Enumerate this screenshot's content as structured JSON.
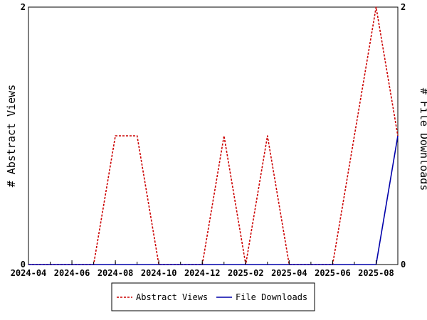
{
  "chart_data": {
    "type": "line",
    "x_labels": [
      "2024-04",
      "2024-06",
      "2024-08",
      "2024-10",
      "2024-12",
      "2025-02",
      "2025-04",
      "2025-06",
      "2025-08"
    ],
    "x_ticks_months": [
      "2024-04",
      "2024-05",
      "2024-06",
      "2024-07",
      "2024-08",
      "2024-09",
      "2024-10",
      "2024-11",
      "2024-12",
      "2025-01",
      "2025-02",
      "2025-03",
      "2025-04",
      "2025-05",
      "2025-06",
      "2025-07",
      "2025-08",
      "2025-09"
    ],
    "x_range": [
      "2024-04",
      "2025-09"
    ],
    "ylabel_left": "# Abstract Views",
    "ylabel_right": "# File Downloads",
    "ylim_left": [
      0,
      2
    ],
    "ylim_right": [
      0,
      2
    ],
    "y_ticks_left": [
      "0",
      "2"
    ],
    "y_ticks_right": [
      "0",
      "2"
    ],
    "grid": false,
    "legend_position": "bottom",
    "series": [
      {
        "name": "Abstract Views",
        "color": "#cc0000",
        "dash": "dashed",
        "axis": "left",
        "points": [
          [
            "2024-04",
            0
          ],
          [
            "2024-05",
            0
          ],
          [
            "2024-06",
            0
          ],
          [
            "2024-07",
            0
          ],
          [
            "2024-08",
            1
          ],
          [
            "2024-09",
            1
          ],
          [
            "2024-10",
            0
          ],
          [
            "2024-11",
            0
          ],
          [
            "2024-12",
            0
          ],
          [
            "2025-01",
            1
          ],
          [
            "2025-02",
            0
          ],
          [
            "2025-03",
            1
          ],
          [
            "2025-04",
            0
          ],
          [
            "2025-05",
            0
          ],
          [
            "2025-06",
            0
          ],
          [
            "2025-07",
            1
          ],
          [
            "2025-08",
            2
          ],
          [
            "2025-09",
            1
          ]
        ]
      },
      {
        "name": "File Downloads",
        "color": "#0000aa",
        "dash": "solid",
        "axis": "right",
        "points": [
          [
            "2024-04",
            0
          ],
          [
            "2024-05",
            0
          ],
          [
            "2024-06",
            0
          ],
          [
            "2024-07",
            0
          ],
          [
            "2024-08",
            0
          ],
          [
            "2024-09",
            0
          ],
          [
            "2024-10",
            0
          ],
          [
            "2024-11",
            0
          ],
          [
            "2024-12",
            0
          ],
          [
            "2025-01",
            0
          ],
          [
            "2025-02",
            0
          ],
          [
            "2025-03",
            0
          ],
          [
            "2025-04",
            0
          ],
          [
            "2025-05",
            0
          ],
          [
            "2025-06",
            0
          ],
          [
            "2025-07",
            0
          ],
          [
            "2025-08",
            0
          ],
          [
            "2025-09",
            1
          ]
        ]
      }
    ]
  }
}
